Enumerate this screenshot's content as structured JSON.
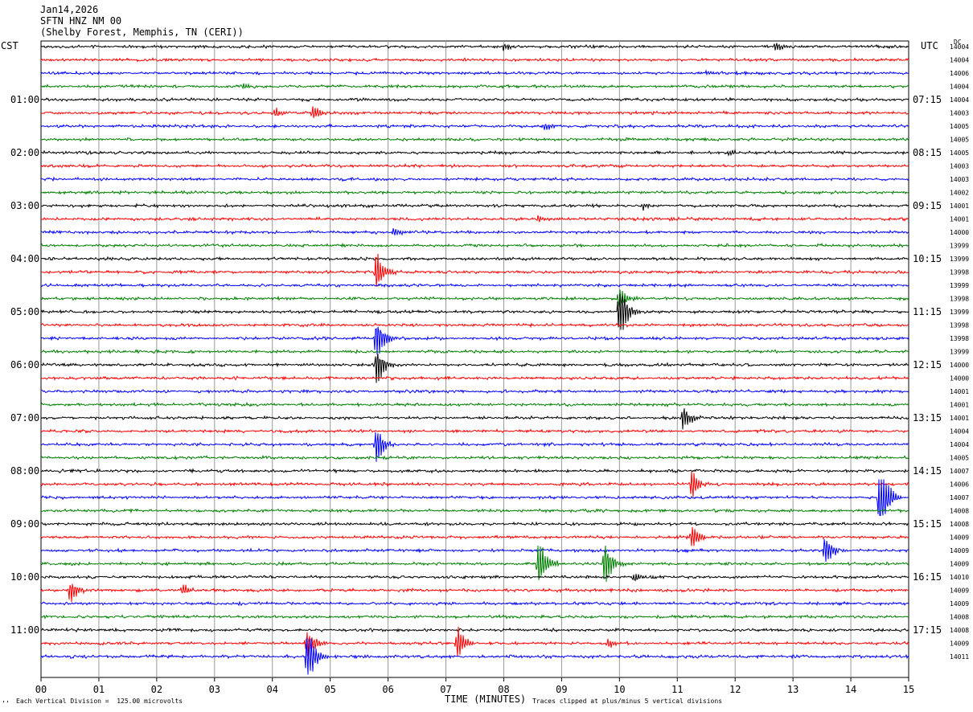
{
  "header": {
    "date": "Jan14,2026",
    "station": "SFTN HNZ NM 00",
    "location": "(Shelby Forest, Memphis, TN (CERI))"
  },
  "chart_data": {
    "type": "line",
    "subtype": "helicorder",
    "left_timezone": "CST",
    "right_timezone": "UTC",
    "dc_label": "DC",
    "xlabel": "TIME (MINUTES)",
    "x_ticks": [
      "00",
      "01",
      "02",
      "03",
      "04",
      "05",
      "06",
      "07",
      "08",
      "09",
      "10",
      "11",
      "12",
      "13",
      "14",
      "15"
    ],
    "xlim": [
      0,
      15
    ],
    "grid": "vertical every minute",
    "trace_colors": [
      "#000000",
      "#ff0000",
      "#0000ff",
      "#008000"
    ],
    "traces_per_hour": 4,
    "cst_hour_labels": [
      {
        "trace": 4,
        "label": "01:00"
      },
      {
        "trace": 8,
        "label": "02:00"
      },
      {
        "trace": 12,
        "label": "03:00"
      },
      {
        "trace": 16,
        "label": "04:00"
      },
      {
        "trace": 20,
        "label": "05:00"
      },
      {
        "trace": 24,
        "label": "06:00"
      },
      {
        "trace": 28,
        "label": "07:00"
      },
      {
        "trace": 32,
        "label": "08:00"
      },
      {
        "trace": 36,
        "label": "09:00"
      },
      {
        "trace": 40,
        "label": "10:00"
      },
      {
        "trace": 44,
        "label": "11:00"
      }
    ],
    "utc_hour_labels": [
      {
        "trace": 4,
        "label": "07:15"
      },
      {
        "trace": 8,
        "label": "08:15"
      },
      {
        "trace": 12,
        "label": "09:15"
      },
      {
        "trace": 16,
        "label": "10:15"
      },
      {
        "trace": 20,
        "label": "11:15"
      },
      {
        "trace": 24,
        "label": "12:15"
      },
      {
        "trace": 28,
        "label": "13:15"
      },
      {
        "trace": 32,
        "label": "14:15"
      },
      {
        "trace": 36,
        "label": "15:15"
      },
      {
        "trace": 40,
        "label": "16:15"
      },
      {
        "trace": 44,
        "label": "17:15"
      }
    ],
    "dc_values": [
      "14004",
      "14004",
      "14006",
      "14004",
      "14004",
      "14003",
      "14005",
      "14005",
      "14005",
      "14003",
      "14003",
      "14002",
      "14001",
      "14001",
      "14000",
      "13999",
      "13999",
      "13998",
      "13999",
      "13998",
      "13999",
      "13998",
      "13998",
      "13999",
      "14000",
      "14000",
      "14001",
      "14001",
      "14001",
      "14004",
      "14004",
      "14005",
      "14007",
      "14006",
      "14007",
      "14008",
      "14008",
      "14009",
      "14009",
      "14009",
      "14010",
      "14009",
      "14009",
      "14008",
      "14008",
      "14009",
      "14011"
    ],
    "events": [
      {
        "trace": 0,
        "minute": 8.0,
        "amp": 0.35
      },
      {
        "trace": 0,
        "minute": 12.7,
        "amp": 0.5
      },
      {
        "trace": 2,
        "minute": 11.5,
        "amp": 0.25
      },
      {
        "trace": 3,
        "minute": 3.5,
        "amp": 0.3
      },
      {
        "trace": 5,
        "minute": 4.05,
        "amp": 0.5
      },
      {
        "trace": 5,
        "minute": 4.7,
        "amp": 0.8
      },
      {
        "trace": 6,
        "minute": 8.7,
        "amp": 0.4
      },
      {
        "trace": 8,
        "minute": 11.9,
        "amp": 0.3
      },
      {
        "trace": 12,
        "minute": 10.4,
        "amp": 0.4
      },
      {
        "trace": 13,
        "minute": 8.6,
        "amp": 0.4
      },
      {
        "trace": 14,
        "minute": 6.1,
        "amp": 0.5
      },
      {
        "trace": 17,
        "minute": 5.8,
        "amp": 2.3
      },
      {
        "trace": 19,
        "minute": 10.0,
        "amp": 1.2
      },
      {
        "trace": 20,
        "minute": 10.0,
        "amp": 3.4
      },
      {
        "trace": 22,
        "minute": 5.8,
        "amp": 2.5
      },
      {
        "trace": 24,
        "minute": 5.8,
        "amp": 2.0
      },
      {
        "trace": 28,
        "minute": 11.1,
        "amp": 1.4
      },
      {
        "trace": 30,
        "minute": 5.8,
        "amp": 2.0
      },
      {
        "trace": 33,
        "minute": 11.25,
        "amp": 1.5
      },
      {
        "trace": 34,
        "minute": 14.5,
        "amp": 5.0
      },
      {
        "trace": 37,
        "minute": 11.25,
        "amp": 1.4
      },
      {
        "trace": 38,
        "minute": 13.55,
        "amp": 1.8
      },
      {
        "trace": 39,
        "minute": 8.6,
        "amp": 2.8
      },
      {
        "trace": 39,
        "minute": 9.75,
        "amp": 2.6
      },
      {
        "trace": 40,
        "minute": 10.25,
        "amp": 0.5
      },
      {
        "trace": 41,
        "minute": 0.5,
        "amp": 1.2
      },
      {
        "trace": 41,
        "minute": 2.45,
        "amp": 0.5
      },
      {
        "trace": 45,
        "minute": 4.6,
        "amp": 1.4
      },
      {
        "trace": 45,
        "minute": 7.2,
        "amp": 1.7
      },
      {
        "trace": 45,
        "minute": 9.8,
        "amp": 0.6
      },
      {
        "trace": 46,
        "minute": 4.6,
        "amp": 3.3
      }
    ]
  },
  "footer": {
    "scale_note": "Each Vertical Division =  125.00 microvolts",
    "clip_note": "Traces clipped at plus/minus 5 vertical divisions",
    "corner_mark": "’’"
  }
}
